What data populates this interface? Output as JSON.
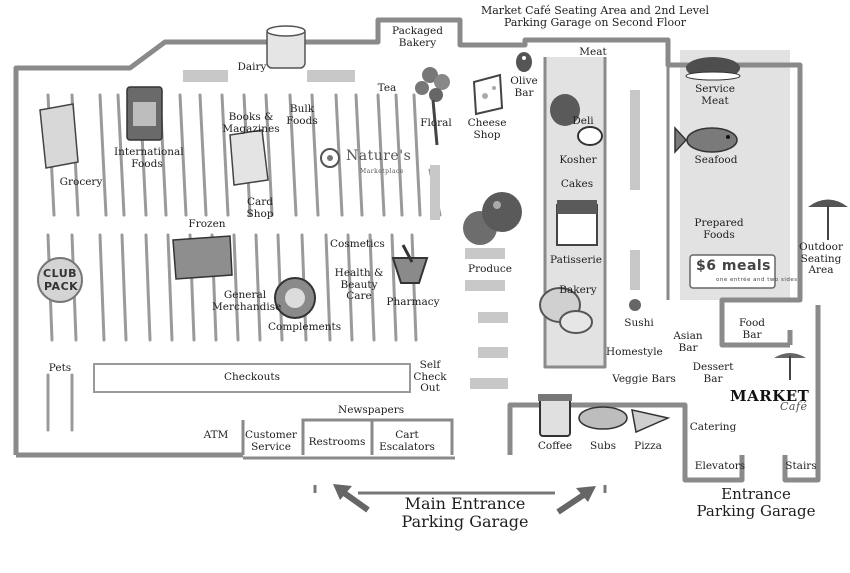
{
  "title": "Market Café Seating Area and 2nd Level\nParking Garage on Second Floor",
  "departments": {
    "packaged_bakery": "Packaged\nBakery",
    "dairy": "Dairy",
    "tea": "Tea",
    "floral": "Floral",
    "cheese_shop": "Cheese\nShop",
    "olive_bar": "Olive\nBar",
    "meat": "Meat",
    "service_meat": "Service\nMeat",
    "seafood": "Seafood",
    "prepared_foods": "Prepared\nFoods",
    "outdoor_seating": "Outdoor\nSeating\nArea",
    "grocery": "Grocery",
    "international_foods": "International\nFoods",
    "books_magazines": "Books &\nMagazines",
    "bulk_foods": "Bulk\nFoods",
    "card_shop": "Card\nShop",
    "deli": "Deli",
    "kosher": "Kosher",
    "cakes": "Cakes",
    "patisserie": "Patisserie",
    "bakery": "Bakery",
    "produce": "Produce",
    "frozen": "Frozen",
    "cosmetics": "Cosmetics",
    "health_beauty": "Health &\nBeauty Care",
    "pharmacy": "Pharmacy",
    "general_merchandise": "General\nMerchandise",
    "complements": "Complements",
    "sushi": "Sushi",
    "asian_bar": "Asian\nBar",
    "food_bar": "Food\nBar",
    "homestyle": "Homestyle",
    "dessert_bar": "Dessert\nBar",
    "veggie_bars": "Veggie Bars",
    "pets": "Pets",
    "checkouts": "Checkouts",
    "self_checkout": "Self\nCheck\nOut",
    "newspapers": "Newspapers",
    "atm": "ATM",
    "customer_service": "Customer\nService",
    "restrooms": "Restrooms",
    "cart_escalators": "Cart\nEscalators",
    "coffee": "Coffee",
    "subs": "Subs",
    "pizza": "Pizza",
    "catering": "Catering",
    "elevators": "Elevators",
    "stairs": "Stairs"
  },
  "entrances": {
    "main": "Main Entrance\nParking Garage",
    "side": "Entrance\nParking Garage"
  },
  "brands": {
    "natures_marketplace": "Nature's",
    "natures_sub": "Marketplace",
    "club_pack_top": "CLUB",
    "club_pack_bottom": "PACK",
    "market_cafe_top": "MARKET",
    "market_cafe_bottom": "Café",
    "six_meals": "$6 meals",
    "six_meals_sub": "one entrée and two sides"
  },
  "colors": {
    "wall": "#8a8a8a",
    "shelf": "#9a9a9a",
    "shade": "#e2e2e2",
    "ink": "#1e1e1e"
  }
}
